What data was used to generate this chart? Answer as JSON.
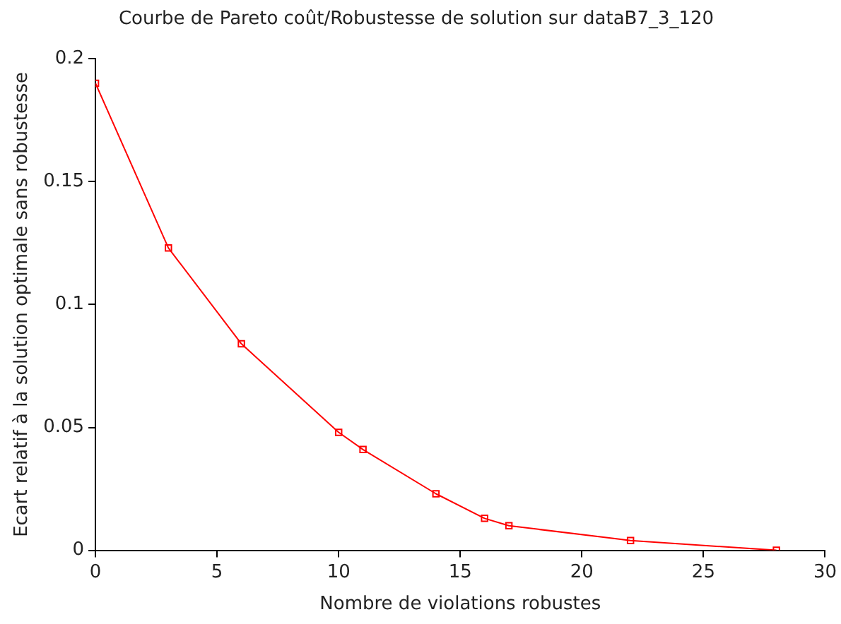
{
  "chart_data": {
    "type": "line",
    "title": "Courbe de Pareto coût/Robustesse de solution sur dataB7_3_120",
    "xlabel": "Nombre de violations robustes",
    "ylabel": "Ecart relatif à la solution optimale sans robustesse",
    "x": [
      0,
      3,
      6,
      10,
      11,
      14,
      16,
      17,
      22,
      28
    ],
    "series": [
      {
        "color": "#ff0000",
        "values": [
          0.19,
          0.123,
          0.084,
          0.048,
          0.041,
          0.023,
          0.013,
          0.01,
          0.004,
          0
        ]
      }
    ],
    "xlim": [
      0,
      30
    ],
    "xticks": [
      0,
      5,
      10,
      15,
      20,
      25,
      30
    ],
    "ylim": [
      0,
      0.2
    ],
    "yticks": [
      0,
      0.05,
      0.1,
      0.15,
      0.2
    ],
    "grid": false,
    "legend": false,
    "marker": "square",
    "line_style": "solid"
  }
}
